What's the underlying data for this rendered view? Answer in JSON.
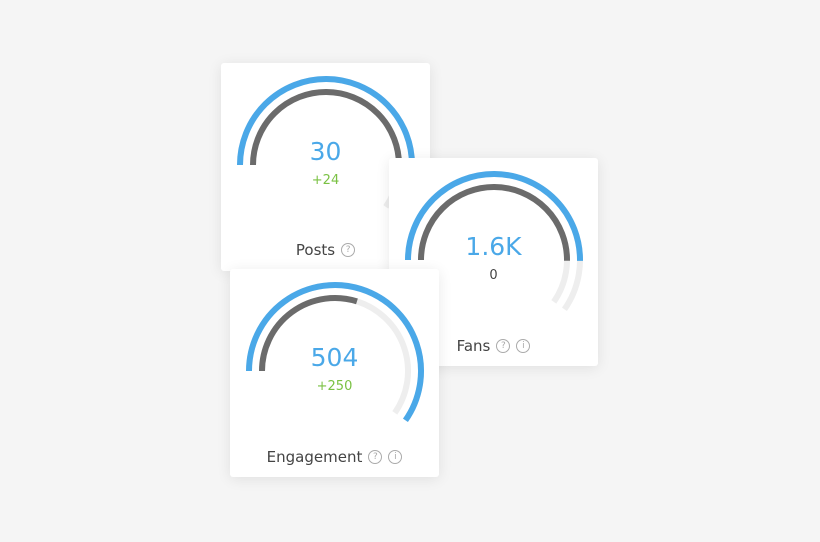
{
  "colors": {
    "accent": "#4aa8e8",
    "secondary": "#6b6b6b",
    "track": "#eeeeee",
    "positive": "#7ac143",
    "neutral": "#444444"
  },
  "cards": [
    {
      "id": "posts",
      "label": "Posts",
      "value": "30",
      "delta": "+24",
      "delta_tone": "positive",
      "outer_fill": 0.84,
      "inner_fill": 0.84,
      "icons": [
        "help-icon"
      ]
    },
    {
      "id": "fans",
      "label": "Fans",
      "value": "1.6K",
      "delta": "0",
      "delta_tone": "neutral",
      "outer_fill": 0.84,
      "inner_fill": 0.84,
      "icons": [
        "help-icon",
        "info-icon"
      ]
    },
    {
      "id": "engagement",
      "label": "Engagement",
      "value": "504",
      "delta": "+250",
      "delta_tone": "positive",
      "outer_fill": 1.0,
      "inner_fill": 0.5,
      "icons": [
        "help-icon",
        "info-icon"
      ]
    }
  ]
}
